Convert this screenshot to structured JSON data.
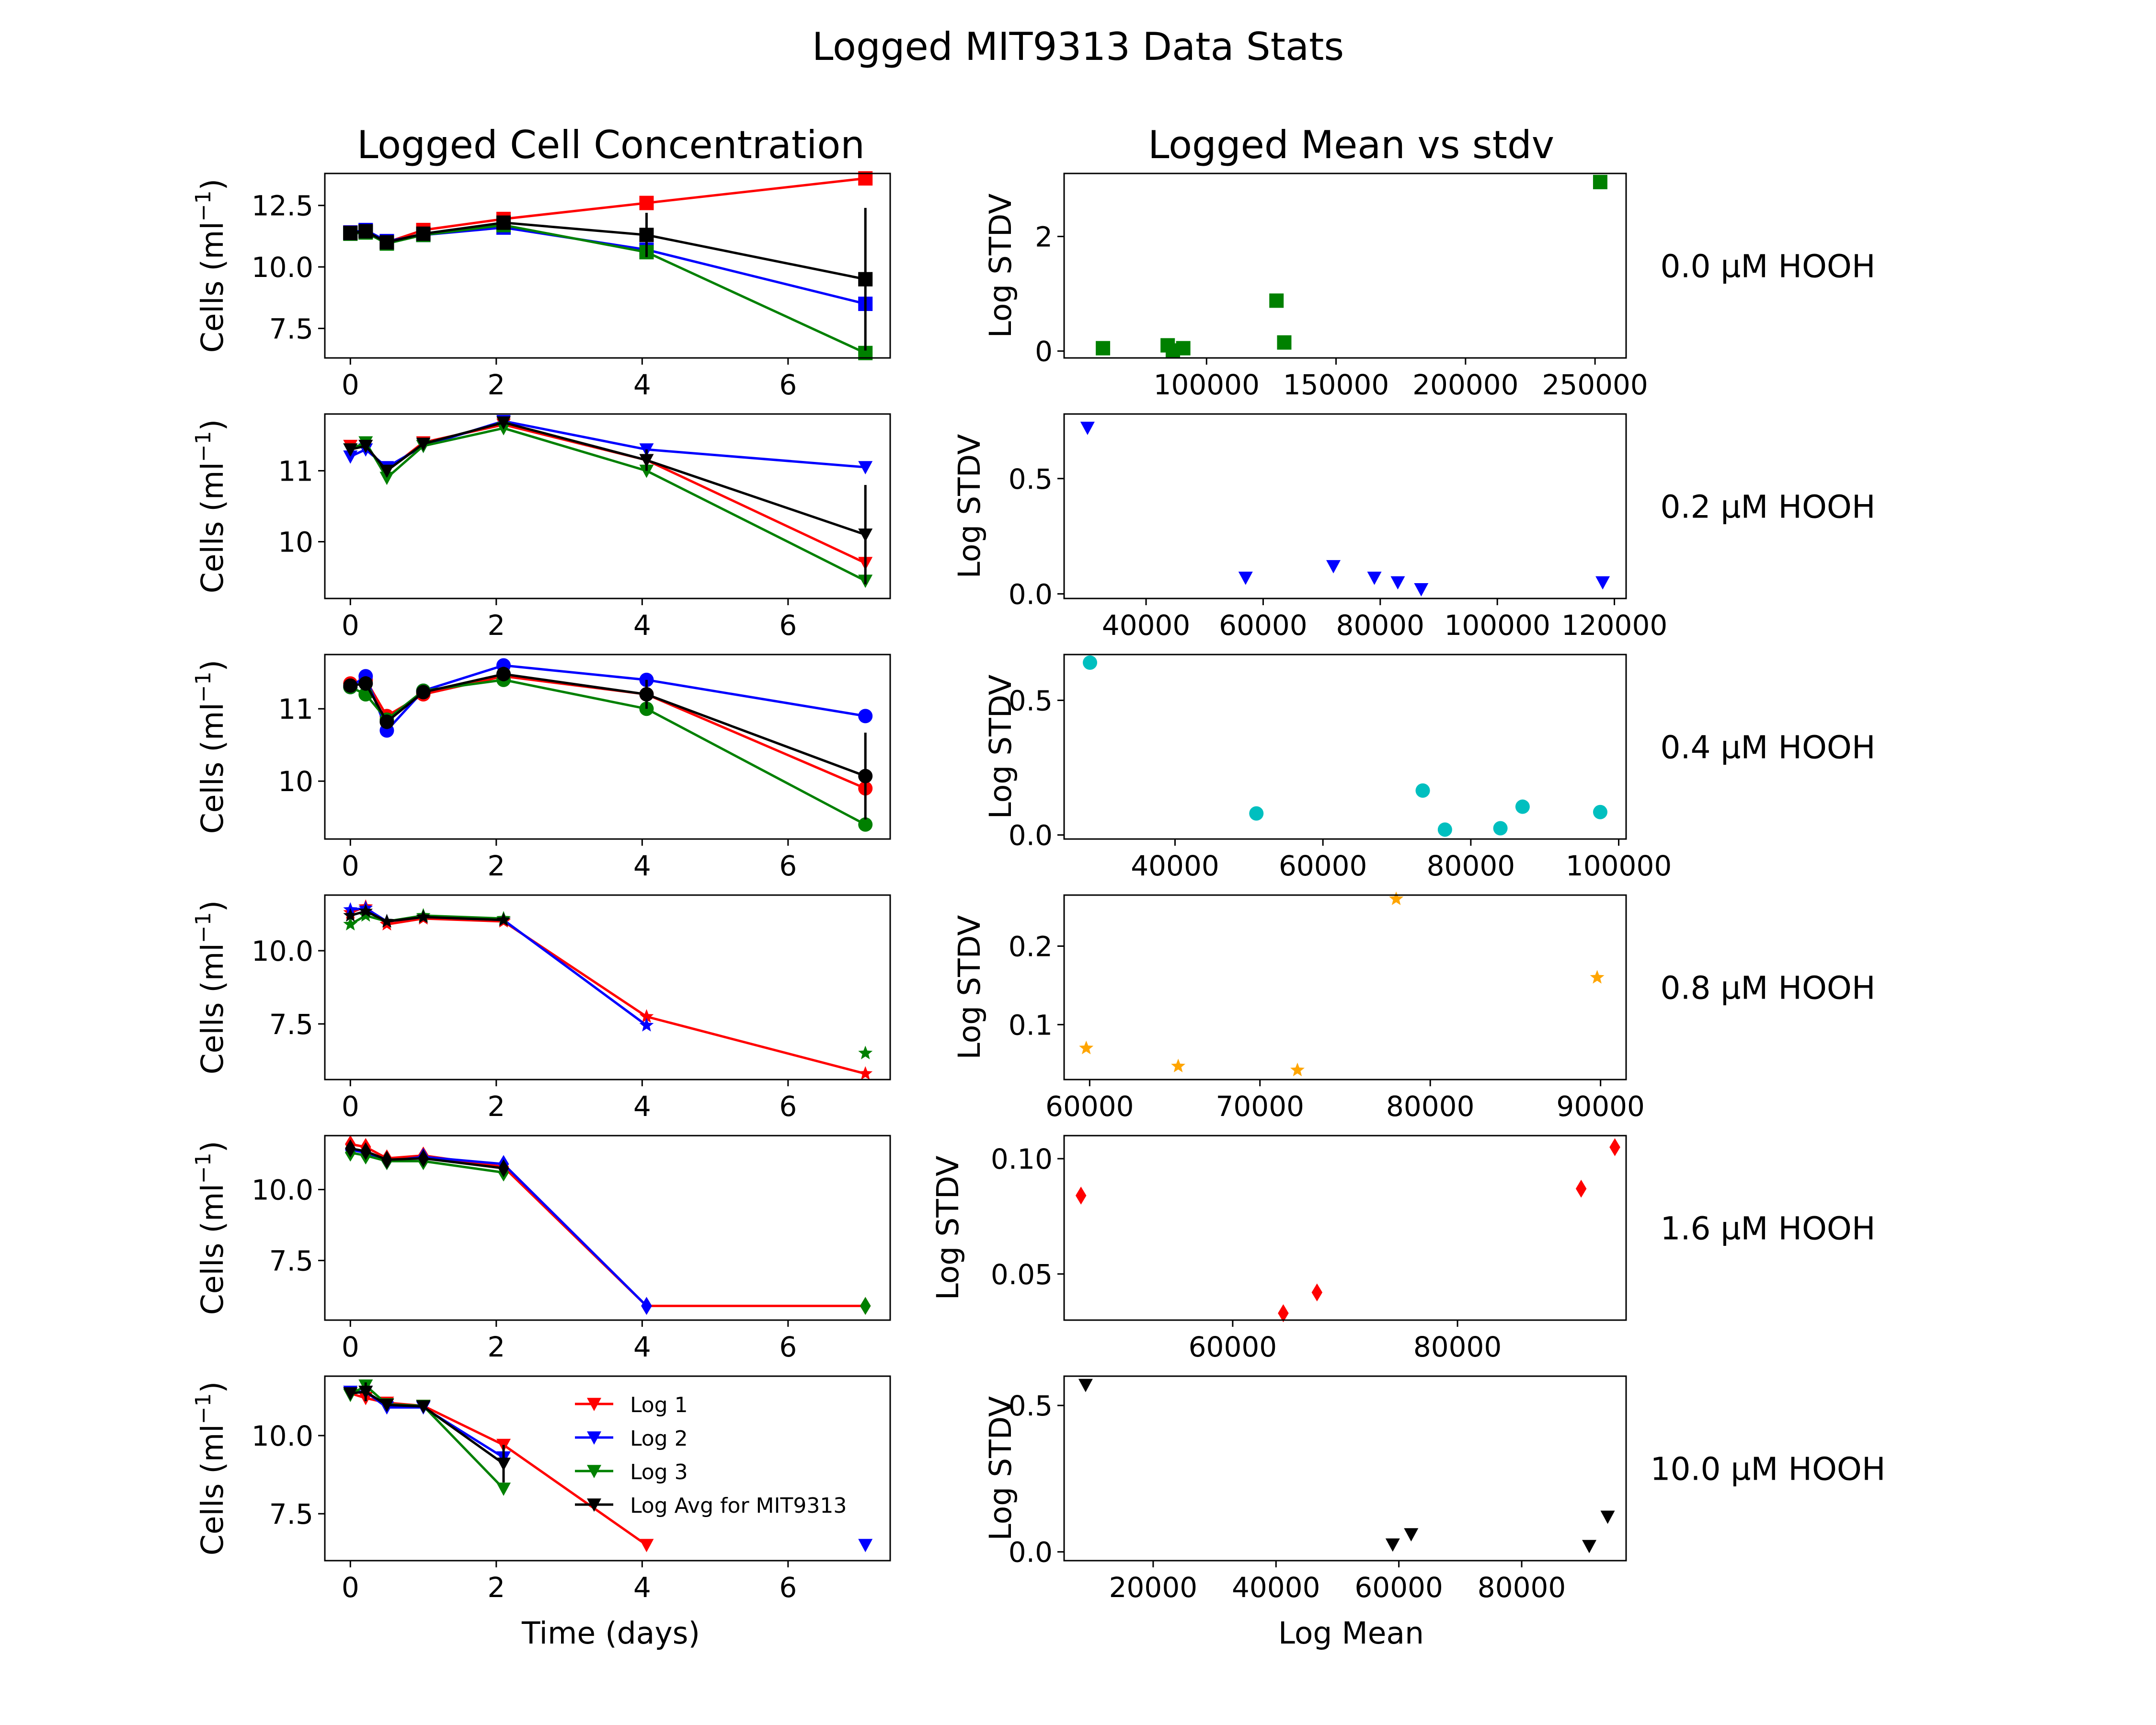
{
  "figure": {
    "suptitle": "Logged MIT9313 Data Stats",
    "left_column_title": "Logged Cell Concentration",
    "right_column_title": "Logged Mean vs stdv",
    "left_ylabel": "Cells (ml",
    "left_ylabel_exp": "−1",
    "left_ylabel_close": ")",
    "left_xlabel": "Time (days)",
    "right_ylabel": "Log STDV",
    "right_xlabel": "Log Mean"
  },
  "legend": {
    "entries": [
      {
        "label": "Log 1",
        "color": "#ff0000"
      },
      {
        "label": "Log 2",
        "color": "#0000ff"
      },
      {
        "label": "Log 3",
        "color": "#008000"
      },
      {
        "label": "Log Avg for MIT9313",
        "color": "#000000"
      }
    ]
  },
  "chart_data": [
    {
      "type": "line",
      "panel": "left",
      "row": 0,
      "marker": "square",
      "xlim": [
        -0.35,
        7.4
      ],
      "ylim": [
        6.3,
        13.8
      ],
      "xticks": [
        0,
        2,
        4,
        6
      ],
      "yticks": [
        7.5,
        10.0,
        12.5
      ],
      "x": [
        0,
        0.21,
        0.5,
        1.0,
        2.1,
        4.06,
        7.06
      ],
      "series": [
        {
          "name": "Log 1",
          "color": "#ff0000",
          "values": [
            11.4,
            11.45,
            11.0,
            11.5,
            11.95,
            12.6,
            13.6
          ]
        },
        {
          "name": "Log 2",
          "color": "#0000ff",
          "values": [
            11.4,
            11.5,
            11.05,
            11.3,
            11.6,
            10.7,
            8.5
          ]
        },
        {
          "name": "Log 3",
          "color": "#008000",
          "values": [
            11.35,
            11.4,
            10.95,
            11.3,
            11.7,
            10.6,
            6.5
          ]
        },
        {
          "name": "Log Avg for MIT9313",
          "color": "#000000",
          "values": [
            11.38,
            11.45,
            11.0,
            11.35,
            11.8,
            11.3,
            9.5
          ],
          "err": [
            0.05,
            0.05,
            0.05,
            0.1,
            0.2,
            0.9,
            2.9
          ]
        }
      ]
    },
    {
      "type": "line",
      "panel": "left",
      "row": 1,
      "marker": "triangle-down",
      "xlim": [
        -0.35,
        7.4
      ],
      "ylim": [
        9.2,
        11.8
      ],
      "xticks": [
        0,
        2,
        4,
        6
      ],
      "yticks": [
        10,
        11
      ],
      "x": [
        0,
        0.21,
        0.5,
        1.0,
        2.1,
        4.06,
        7.06
      ],
      "series": [
        {
          "name": "Log 1",
          "color": "#ff0000",
          "values": [
            11.35,
            11.35,
            11.0,
            11.4,
            11.65,
            11.15,
            9.7
          ]
        },
        {
          "name": "Log 2",
          "color": "#0000ff",
          "values": [
            11.2,
            11.3,
            11.05,
            11.35,
            11.7,
            11.3,
            11.05
          ]
        },
        {
          "name": "Log 3",
          "color": "#008000",
          "values": [
            11.3,
            11.4,
            10.9,
            11.35,
            11.6,
            11.0,
            9.45
          ]
        },
        {
          "name": "Log Avg for MIT9313",
          "color": "#000000",
          "values": [
            11.3,
            11.35,
            11.0,
            11.38,
            11.68,
            11.15,
            10.1
          ],
          "err": [
            0.08,
            0.05,
            0.08,
            0.05,
            0.05,
            0.15,
            0.7
          ]
        }
      ]
    },
    {
      "type": "line",
      "panel": "left",
      "row": 2,
      "marker": "circle",
      "xlim": [
        -0.35,
        7.4
      ],
      "ylim": [
        9.2,
        11.75
      ],
      "xticks": [
        0,
        2,
        4,
        6
      ],
      "yticks": [
        10,
        11
      ],
      "x": [
        0,
        0.21,
        0.5,
        1.0,
        2.1,
        4.06,
        7.06
      ],
      "series": [
        {
          "name": "Log 1",
          "color": "#ff0000",
          "values": [
            11.35,
            11.4,
            10.9,
            11.2,
            11.45,
            11.2,
            9.9
          ]
        },
        {
          "name": "Log 2",
          "color": "#0000ff",
          "values": [
            11.3,
            11.45,
            10.7,
            11.25,
            11.6,
            11.4,
            10.9
          ]
        },
        {
          "name": "Log 3",
          "color": "#008000",
          "values": [
            11.3,
            11.2,
            10.85,
            11.25,
            11.4,
            11.0,
            9.4
          ]
        },
        {
          "name": "Log Avg for MIT9313",
          "color": "#000000",
          "values": [
            11.32,
            11.35,
            10.82,
            11.23,
            11.48,
            11.2,
            10.07
          ],
          "err": [
            0.05,
            0.1,
            0.1,
            0.05,
            0.1,
            0.2,
            0.6
          ]
        }
      ]
    },
    {
      "type": "line",
      "panel": "left",
      "row": 3,
      "marker": "star",
      "xlim": [
        -0.35,
        7.4
      ],
      "ylim": [
        5.6,
        11.9
      ],
      "xticks": [
        0,
        2,
        4,
        6
      ],
      "yticks": [
        7.5,
        10.0
      ],
      "x": [
        0,
        0.21,
        0.5,
        1.0,
        2.1,
        4.06,
        7.06
      ],
      "series": [
        {
          "name": "Log 1",
          "color": "#ff0000",
          "values": [
            11.3,
            11.5,
            10.9,
            11.1,
            11.0,
            7.75,
            5.8
          ]
        },
        {
          "name": "Log 2",
          "color": "#0000ff",
          "values": [
            11.4,
            11.45,
            11.0,
            11.15,
            11.05,
            7.45,
            null
          ]
        },
        {
          "name": "Log 3",
          "color": "#008000",
          "values": [
            10.9,
            11.2,
            11.0,
            11.2,
            11.1,
            null,
            6.5
          ]
        },
        {
          "name": "Log Avg for MIT9313",
          "color": "#000000",
          "values": [
            11.2,
            11.35,
            11.0,
            11.15,
            11.05,
            null,
            null
          ],
          "err": [
            0.1,
            0.1,
            0.05,
            0.05,
            0.05,
            null,
            null
          ]
        }
      ]
    },
    {
      "type": "line",
      "panel": "left",
      "row": 4,
      "marker": "diamond",
      "xlim": [
        -0.35,
        7.4
      ],
      "ylim": [
        5.4,
        11.9
      ],
      "xticks": [
        0,
        2,
        4,
        6
      ],
      "yticks": [
        7.5,
        10.0
      ],
      "x": [
        0,
        0.21,
        0.5,
        1.0,
        2.1,
        4.06,
        7.06
      ],
      "series": [
        {
          "name": "Log 1",
          "color": "#ff0000",
          "values": [
            11.6,
            11.5,
            11.1,
            11.2,
            10.8,
            5.9,
            5.9
          ]
        },
        {
          "name": "Log 2",
          "color": "#0000ff",
          "values": [
            11.4,
            11.3,
            11.0,
            11.15,
            10.9,
            5.9,
            null
          ]
        },
        {
          "name": "Log 3",
          "color": "#008000",
          "values": [
            11.3,
            11.2,
            11.0,
            11.0,
            10.6,
            null,
            5.9
          ]
        },
        {
          "name": "Log Avg for MIT9313",
          "color": "#000000",
          "values": [
            11.45,
            11.35,
            11.05,
            11.1,
            10.75,
            null,
            null
          ],
          "err": [
            0.08,
            0.08,
            0.04,
            0.05,
            0.04,
            null,
            null
          ]
        }
      ]
    },
    {
      "type": "line",
      "panel": "left",
      "row": 5,
      "marker": "triangle-down",
      "xlim": [
        -0.35,
        7.4
      ],
      "ylim": [
        6.0,
        11.9
      ],
      "xticks": [
        0,
        2,
        4,
        6
      ],
      "yticks": [
        7.5,
        10.0
      ],
      "x": [
        0,
        0.21,
        0.5,
        1.0,
        2.1,
        4.06,
        7.06
      ],
      "series": [
        {
          "name": "Log 1",
          "color": "#ff0000",
          "values": [
            11.35,
            11.2,
            11.05,
            10.95,
            9.7,
            6.5,
            null
          ]
        },
        {
          "name": "Log 2",
          "color": "#0000ff",
          "values": [
            11.4,
            11.4,
            10.9,
            10.9,
            9.3,
            null,
            6.5
          ]
        },
        {
          "name": "Log 3",
          "color": "#008000",
          "values": [
            11.3,
            11.6,
            11.0,
            10.95,
            8.3,
            null,
            null
          ]
        },
        {
          "name": "Log Avg for MIT9313",
          "color": "#000000",
          "values": [
            11.35,
            11.4,
            10.98,
            10.93,
            9.1,
            null,
            null
          ],
          "err": [
            0.05,
            0.3,
            0.05,
            0.05,
            0.6,
            null,
            null
          ]
        }
      ]
    },
    {
      "type": "scatter",
      "panel": "right",
      "row": 0,
      "marker": "square",
      "color": "#008000",
      "label": "0.0 µM HOOH",
      "xlim": [
        45000,
        262000
      ],
      "ylim": [
        -0.12,
        3.1
      ],
      "xticks": [
        100000,
        150000,
        200000,
        250000
      ],
      "yticks": [
        0,
        2
      ],
      "points": [
        [
          60000,
          0.05
        ],
        [
          85000,
          0.1
        ],
        [
          87000,
          0.01
        ],
        [
          91000,
          0.05
        ],
        [
          127000,
          0.88
        ],
        [
          130000,
          0.15
        ],
        [
          252000,
          2.95
        ]
      ]
    },
    {
      "type": "scatter",
      "panel": "right",
      "row": 1,
      "marker": "triangle-down",
      "color": "#0000ff",
      "label": "0.2 µM HOOH",
      "xlim": [
        26000,
        122000
      ],
      "ylim": [
        -0.02,
        0.78
      ],
      "xticks": [
        40000,
        60000,
        80000,
        100000,
        120000
      ],
      "yticks": [
        0.0,
        0.5
      ],
      "points": [
        [
          30000,
          0.72
        ],
        [
          57000,
          0.07
        ],
        [
          72000,
          0.12
        ],
        [
          79000,
          0.07
        ],
        [
          83000,
          0.05
        ],
        [
          87000,
          0.02
        ],
        [
          118000,
          0.05
        ]
      ]
    },
    {
      "type": "scatter",
      "panel": "right",
      "row": 2,
      "marker": "circle",
      "color": "#00bfbf",
      "label": "0.4 µM HOOH",
      "xlim": [
        25000,
        101000
      ],
      "ylim": [
        -0.015,
        0.67
      ],
      "xticks": [
        40000,
        60000,
        80000,
        100000
      ],
      "yticks": [
        0.0,
        0.5
      ],
      "points": [
        [
          28500,
          0.64
        ],
        [
          51000,
          0.08
        ],
        [
          73500,
          0.165
        ],
        [
          76500,
          0.02
        ],
        [
          84000,
          0.025
        ],
        [
          87000,
          0.105
        ],
        [
          97500,
          0.085
        ]
      ]
    },
    {
      "type": "scatter",
      "panel": "right",
      "row": 3,
      "marker": "star",
      "color": "#ffa500",
      "label": "0.8 µM HOOH",
      "xlim": [
        58500,
        91500
      ],
      "ylim": [
        0.03,
        0.265
      ],
      "xticks": [
        60000,
        70000,
        80000,
        90000
      ],
      "yticks": [
        0.1,
        0.2
      ],
      "points": [
        [
          59800,
          0.07
        ],
        [
          65200,
          0.047
        ],
        [
          72200,
          0.042
        ],
        [
          78000,
          0.26
        ],
        [
          89800,
          0.16
        ]
      ]
    },
    {
      "type": "scatter",
      "panel": "right",
      "row": 4,
      "marker": "diamond",
      "color": "#ff0000",
      "label": "1.6 µM HOOH",
      "xlim": [
        45000,
        95000
      ],
      "ylim": [
        0.03,
        0.11
      ],
      "xticks": [
        60000,
        80000
      ],
      "yticks": [
        0.05,
        0.1
      ],
      "points": [
        [
          46500,
          0.084
        ],
        [
          64500,
          0.033
        ],
        [
          67500,
          0.042
        ],
        [
          91000,
          0.087
        ],
        [
          94000,
          0.105
        ]
      ]
    },
    {
      "type": "scatter",
      "panel": "right",
      "row": 5,
      "marker": "triangle-down",
      "color": "#000000",
      "label": "10.0 µM HOOH",
      "xlim": [
        5500,
        97000
      ],
      "ylim": [
        -0.03,
        0.6
      ],
      "xticks": [
        20000,
        40000,
        60000,
        80000
      ],
      "yticks": [
        0.0,
        0.5
      ],
      "points": [
        [
          9000,
          0.57
        ],
        [
          59000,
          0.025
        ],
        [
          62000,
          0.06
        ],
        [
          91000,
          0.02
        ],
        [
          94000,
          0.12
        ]
      ]
    }
  ]
}
